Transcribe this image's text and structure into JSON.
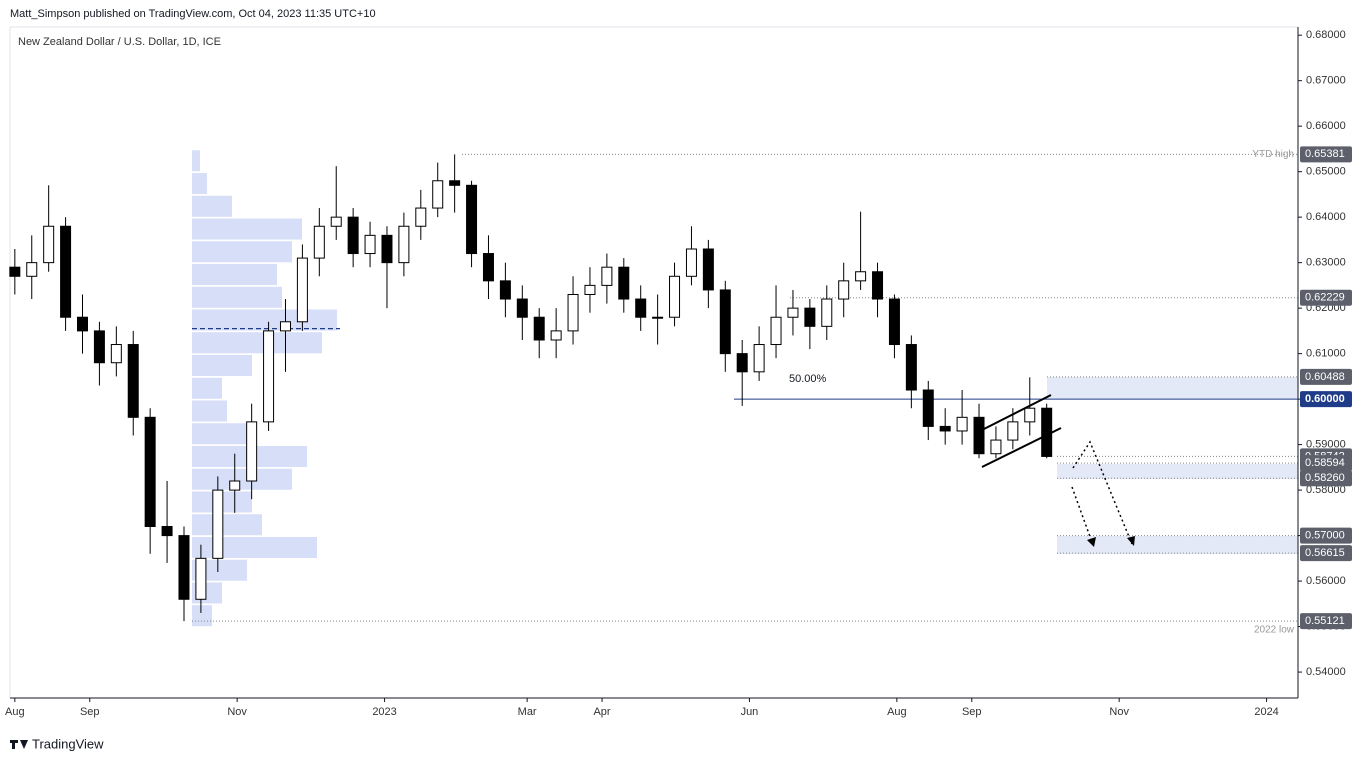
{
  "header": "Matt_Simpson published on TradingView.com, Oct 04, 2023 11:35 UTC+10",
  "footer": "TradingView",
  "chart_data": {
    "type": "candlestick",
    "title": "New Zealand Dollar / U.S. Dollar, 1D, ICE",
    "up_color": "#ffffff",
    "down_color": "#000000",
    "edge_color": "#000000",
    "xlim": [
      -2,
      531
    ],
    "xticks": [
      {
        "value": 0,
        "label": "Aug"
      },
      {
        "value": 31,
        "label": "Sep"
      },
      {
        "value": 92,
        "label": "Nov"
      },
      {
        "value": 153,
        "label": "2023"
      },
      {
        "value": 212,
        "label": "Mar"
      },
      {
        "value": 243,
        "label": "Apr"
      },
      {
        "value": 304,
        "label": "Jun"
      },
      {
        "value": 365,
        "label": "Aug"
      },
      {
        "value": 396,
        "label": "Sep"
      },
      {
        "value": 457,
        "label": "Nov"
      },
      {
        "value": 518,
        "label": "2024"
      }
    ],
    "ylim": [
      0.5343,
      0.6818
    ],
    "yticks": [
      {
        "value": 0.54,
        "label": "0.54000"
      },
      {
        "value": 0.55,
        "label": "0.55000"
      },
      {
        "value": 0.56,
        "label": "0.56000"
      },
      {
        "value": 0.57,
        "label": "0.57000"
      },
      {
        "value": 0.58,
        "label": "0.58000"
      },
      {
        "value": 0.59,
        "label": "0.59000"
      },
      {
        "value": 0.6,
        "label": "0.60000"
      },
      {
        "value": 0.61,
        "label": "0.61000"
      },
      {
        "value": 0.62,
        "label": "0.62000"
      },
      {
        "value": 0.63,
        "label": "0.63000"
      },
      {
        "value": 0.64,
        "label": "0.64000"
      },
      {
        "value": 0.65,
        "label": "0.65000"
      },
      {
        "value": 0.66,
        "label": "0.66000"
      },
      {
        "value": 0.67,
        "label": "0.67000"
      },
      {
        "value": 0.68,
        "label": "0.68000"
      }
    ],
    "x": [
      0,
      7,
      14,
      21,
      28,
      35,
      42,
      49,
      56,
      63,
      70,
      77,
      84,
      91,
      98,
      105,
      112,
      119,
      126,
      133,
      140,
      147,
      154,
      161,
      168,
      175,
      182,
      189,
      196,
      203,
      210,
      217,
      224,
      231,
      238,
      245,
      252,
      259,
      266,
      273,
      280,
      287,
      294,
      301,
      308,
      315,
      322,
      329,
      336,
      343,
      350,
      357,
      364,
      371,
      378,
      385,
      392,
      399,
      406,
      413,
      420,
      427
    ],
    "open": [
      0.629,
      0.627,
      0.63,
      0.638,
      0.618,
      0.615,
      0.608,
      0.612,
      0.596,
      0.572,
      0.57,
      0.556,
      0.565,
      0.58,
      0.582,
      0.595,
      0.615,
      0.617,
      0.631,
      0.638,
      0.64,
      0.632,
      0.636,
      0.63,
      0.638,
      0.642,
      0.648,
      0.647,
      0.632,
      0.626,
      0.622,
      0.618,
      0.613,
      0.615,
      0.623,
      0.625,
      0.629,
      0.622,
      0.618,
      0.618,
      0.627,
      0.633,
      0.624,
      0.61,
      0.606,
      0.612,
      0.618,
      0.62,
      0.616,
      0.622,
      0.626,
      0.628,
      0.622,
      0.612,
      0.602,
      0.594,
      0.593,
      0.596,
      0.588,
      0.591,
      0.595,
      0.598
    ],
    "high": [
      0.633,
      0.636,
      0.647,
      0.64,
      0.623,
      0.617,
      0.616,
      0.615,
      0.598,
      0.582,
      0.572,
      0.568,
      0.583,
      0.588,
      0.599,
      0.617,
      0.622,
      0.634,
      0.642,
      0.6512,
      0.642,
      0.639,
      0.638,
      0.641,
      0.646,
      0.652,
      0.6538,
      0.648,
      0.636,
      0.63,
      0.625,
      0.62,
      0.62,
      0.627,
      0.629,
      0.632,
      0.631,
      0.625,
      0.623,
      0.63,
      0.638,
      0.635,
      0.626,
      0.613,
      0.616,
      0.625,
      0.624,
      0.622,
      0.625,
      0.63,
      0.6412,
      0.63,
      0.623,
      0.614,
      0.604,
      0.598,
      0.602,
      0.599,
      0.594,
      0.598,
      0.6048,
      0.599
    ],
    "low": [
      0.623,
      0.622,
      0.628,
      0.615,
      0.61,
      0.603,
      0.605,
      0.592,
      0.566,
      0.564,
      0.5512,
      0.553,
      0.562,
      0.575,
      0.578,
      0.593,
      0.606,
      0.615,
      0.627,
      0.635,
      0.629,
      0.629,
      0.62,
      0.627,
      0.635,
      0.64,
      0.641,
      0.629,
      0.622,
      0.618,
      0.613,
      0.609,
      0.609,
      0.612,
      0.619,
      0.621,
      0.619,
      0.615,
      0.612,
      0.616,
      0.625,
      0.62,
      0.606,
      0.5985,
      0.604,
      0.609,
      0.614,
      0.611,
      0.613,
      0.618,
      0.624,
      0.618,
      0.609,
      0.598,
      0.591,
      0.59,
      0.59,
      0.587,
      0.587,
      0.589,
      0.592,
      0.587
    ],
    "close": [
      0.627,
      0.63,
      0.638,
      0.618,
      0.615,
      0.608,
      0.612,
      0.596,
      0.572,
      0.57,
      0.556,
      0.565,
      0.58,
      0.582,
      0.595,
      0.615,
      0.617,
      0.631,
      0.638,
      0.64,
      0.632,
      0.636,
      0.63,
      0.638,
      0.642,
      0.648,
      0.647,
      0.632,
      0.626,
      0.622,
      0.618,
      0.613,
      0.615,
      0.623,
      0.625,
      0.629,
      0.622,
      0.618,
      0.618,
      0.627,
      0.633,
      0.624,
      0.61,
      0.606,
      0.612,
      0.618,
      0.62,
      0.616,
      0.622,
      0.626,
      0.628,
      0.622,
      0.612,
      0.602,
      0.594,
      0.593,
      0.596,
      0.588,
      0.591,
      0.595,
      0.598,
      0.5874
    ],
    "volume_profile": {
      "color": "#c8d3f5",
      "poc": 0.6155,
      "prices": [
        0.5525,
        0.5575,
        0.5625,
        0.5675,
        0.5725,
        0.5775,
        0.5825,
        0.5875,
        0.5925,
        0.5975,
        0.6025,
        0.6075,
        0.6125,
        0.6175,
        0.6225,
        0.6275,
        0.6325,
        0.6375,
        0.6425,
        0.6475,
        0.6525
      ],
      "volumes": [
        20,
        30,
        55,
        125,
        70,
        60,
        100,
        115,
        60,
        35,
        30,
        60,
        130,
        145,
        90,
        85,
        100,
        110,
        40,
        15,
        8
      ]
    },
    "levels": [
      {
        "value": 0.65381,
        "label": "0.65381",
        "note": "YTD high",
        "color": "#5d606b"
      },
      {
        "value": 0.62229,
        "label": "0.62229",
        "color": "#5d606b"
      },
      {
        "value": 0.60488,
        "label": "0.60488",
        "color": "#5d606b"
      },
      {
        "value": 0.6,
        "label": "0.60000",
        "color": "#1f3c88"
      },
      {
        "value": 0.58742,
        "label": "0.58742",
        "color": "#5d606b"
      },
      {
        "value": 0.58594,
        "label": "0.58594",
        "color": "#5d606b"
      },
      {
        "value": 0.5826,
        "label": "0.58260",
        "color": "#5d606b"
      },
      {
        "value": 0.57,
        "label": "0.57000",
        "color": "#5d606b"
      },
      {
        "value": 0.56615,
        "label": "0.56615",
        "color": "#5d606b"
      },
      {
        "value": 0.55121,
        "label": "0.55121",
        "note": "2022 low",
        "color": "#5d606b"
      }
    ],
    "fib_label": "50.00%"
  }
}
